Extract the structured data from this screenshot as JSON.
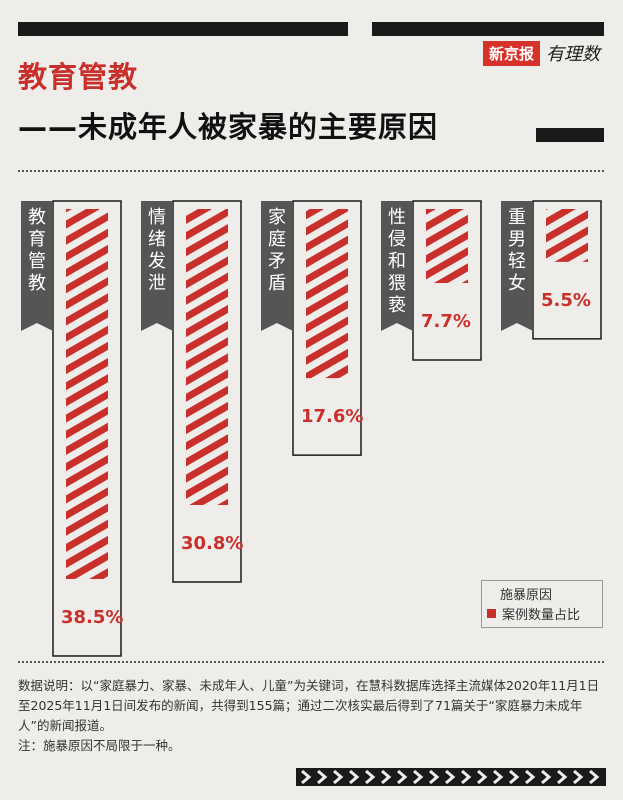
{
  "brand": {
    "name": "新京报",
    "sub": "有理数"
  },
  "title": {
    "line1": "教育管教",
    "line2": "——未成年人被家暴的主要原因"
  },
  "chart_data": {
    "type": "bar",
    "categories": [
      "教育管教",
      "情绪发泄",
      "家庭矛盾",
      "性侵和猥亵",
      "重男轻女"
    ],
    "values": [
      38.5,
      30.8,
      17.6,
      7.7,
      5.5
    ],
    "value_labels": [
      "38.5%",
      "30.8%",
      "17.6%",
      "7.7%",
      "5.5%"
    ],
    "unit": "%",
    "legend": {
      "title": "施暴原因",
      "entry": "案例数量占比"
    },
    "colors": {
      "bar": "#c9302c",
      "label_bg": "#555555"
    }
  },
  "notes": {
    "text": "数据说明：以“家庭暴力、家暴、未成年人、儿童”为关键词，在慧科数据库选择主流媒体2020年11月1日至2025年11月1日间发布的新闻，共得到155篇；通过二次核实最后得到了71篇关于“家庭暴力未成年人”的新闻报道。",
    "note": "注：施暴原因不局限于一种。"
  }
}
